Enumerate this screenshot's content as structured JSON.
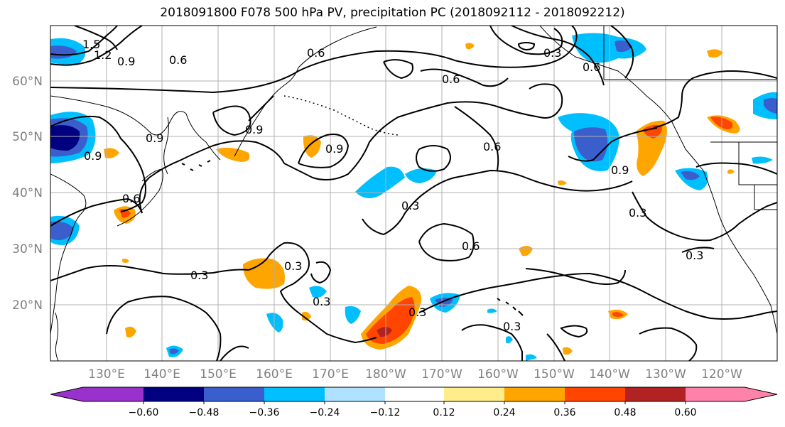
{
  "map": {
    "title": "2018091800 F078 500 hPa PV, precipitation PC (2018092112 - 2018092212)",
    "lat_labels": [
      "60°N",
      "50°N",
      "40°N",
      "30°N",
      "20°N"
    ],
    "lon_labels": [
      "130°E",
      "140°E",
      "150°E",
      "160°E",
      "170°E",
      "180°W",
      "170°W",
      "160°W",
      "150°W",
      "140°W",
      "130°W",
      "120°W"
    ],
    "contour_labels": [
      "1.5",
      "1.2",
      "0.9",
      "0.6",
      "0.6",
      "0.6",
      "0.9",
      "0.9",
      "0.6",
      "0.9",
      "0.9",
      "0.3",
      "0.6",
      "0.3",
      "0.3",
      "0.3",
      "0.3",
      "0.3",
      "0.3",
      "0.6",
      "0.3",
      "0.9",
      "0.6",
      "0.3"
    ],
    "colors": {
      "neg_060": "#9932cc",
      "neg_048": "#000080",
      "neg_036": "#3a5fcd",
      "neg_024": "#00bfff",
      "neg_012": "#b0e2ff",
      "neutral": "#ffffff",
      "pos_012": "#ffec8b",
      "pos_024": "#ffa500",
      "pos_036": "#ff4500",
      "pos_048": "#b22222",
      "pos_060": "#ff82ab",
      "contour": "#000000",
      "grid": "#b0b0b0",
      "coast": "#000000"
    }
  },
  "colorbar": {
    "ticks": [
      "−0.60",
      "−0.48",
      "−0.36",
      "−0.24",
      "−0.12",
      "0.12",
      "0.24",
      "0.36",
      "0.48",
      "0.60"
    ]
  }
}
